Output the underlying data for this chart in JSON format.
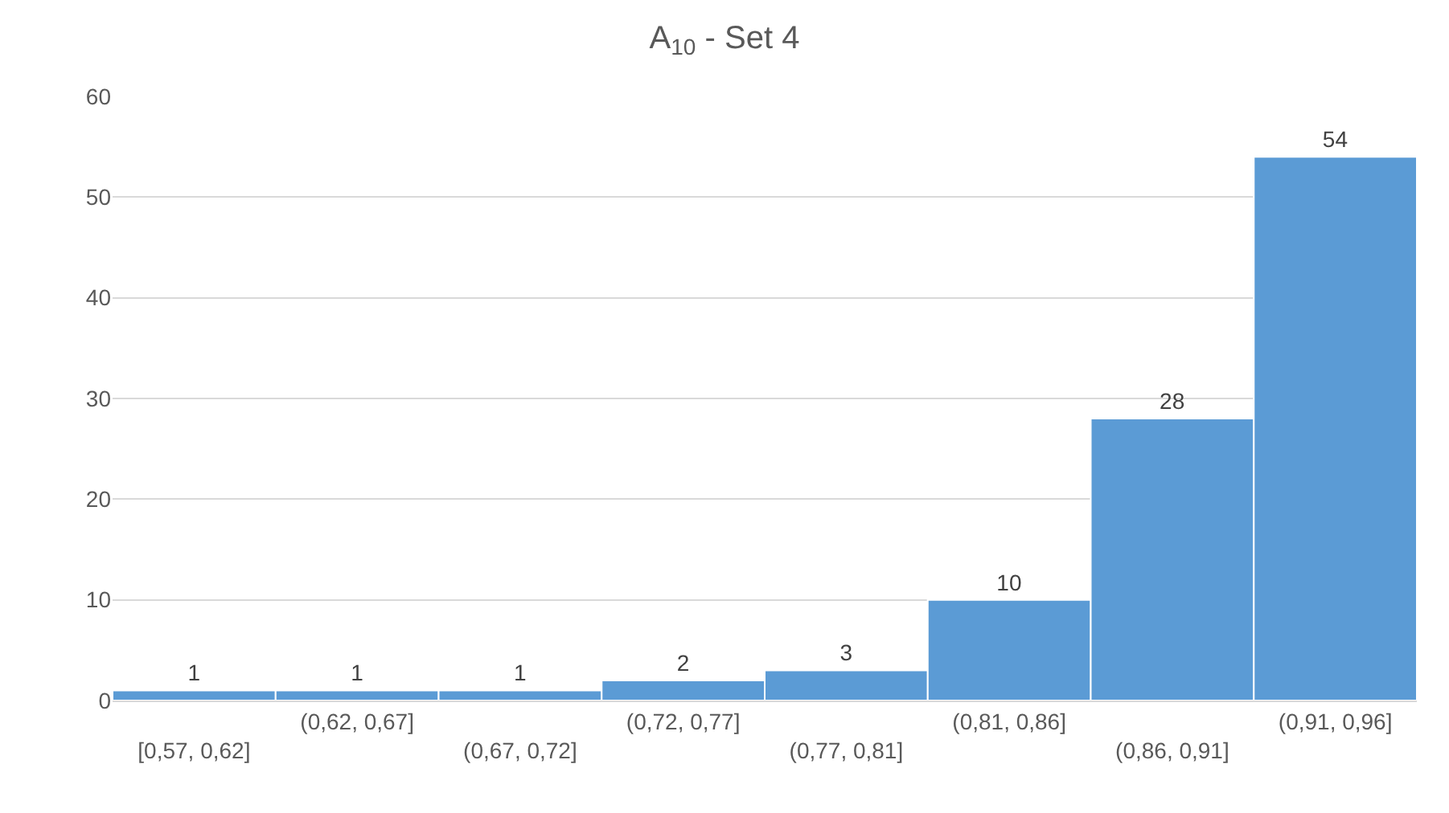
{
  "chart_data": {
    "type": "bar",
    "title": "A$_{10}$ - Set 4",
    "categories": [
      "[0,57, 0,62]",
      "(0,62, 0,67]",
      "(0,67, 0,72]",
      "(0,72, 0,77]",
      "(0,77, 0,81]",
      "(0,81, 0,86]",
      "(0,86, 0,91]",
      "(0,91, 0,96]"
    ],
    "values": [
      1,
      1,
      1,
      2,
      3,
      10,
      28,
      54
    ],
    "color": "#5b9bd5",
    "ylim": [
      0,
      60
    ],
    "yticks": [
      0,
      10,
      20,
      30,
      40,
      50,
      60
    ],
    "grid": "y",
    "data_labels": true,
    "legend": false
  }
}
